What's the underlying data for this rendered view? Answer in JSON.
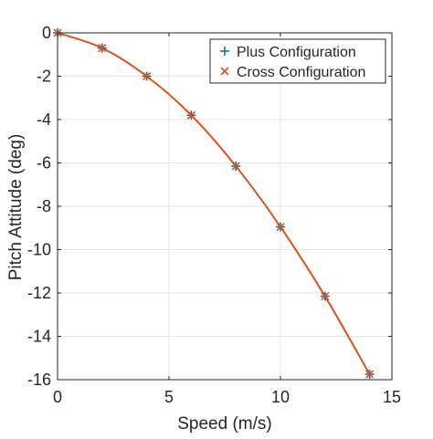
{
  "chart_data": {
    "type": "line",
    "title": "",
    "xlabel": "Speed (m/s)",
    "ylabel": "Pitch Attitude (deg)",
    "xlim": [
      0,
      15
    ],
    "ylim": [
      -16,
      0
    ],
    "xticks": [
      0,
      5,
      10,
      15
    ],
    "yticks": [
      0,
      -2,
      -4,
      -6,
      -8,
      -10,
      -12,
      -14,
      -16
    ],
    "grid": true,
    "legend_position": "top-right",
    "colors": {
      "plus": "#1f6f9f",
      "cross": "#d95319",
      "curve": "#d95319",
      "grid": "#e6e6e6",
      "axis": "#262626"
    },
    "series": [
      {
        "name": "Plus Configuration",
        "marker": "plus",
        "x": [
          0,
          2,
          4,
          6,
          8,
          10,
          12,
          14
        ],
        "y": [
          0,
          -0.7,
          -2.0,
          -3.8,
          -6.15,
          -8.95,
          -12.15,
          -15.75
        ]
      },
      {
        "name": "Cross Configuration",
        "marker": "cross",
        "x": [
          0,
          2,
          4,
          6,
          8,
          10,
          12,
          14
        ],
        "y": [
          0,
          -0.7,
          -2.0,
          -3.8,
          -6.15,
          -8.95,
          -12.15,
          -15.75
        ]
      }
    ]
  }
}
